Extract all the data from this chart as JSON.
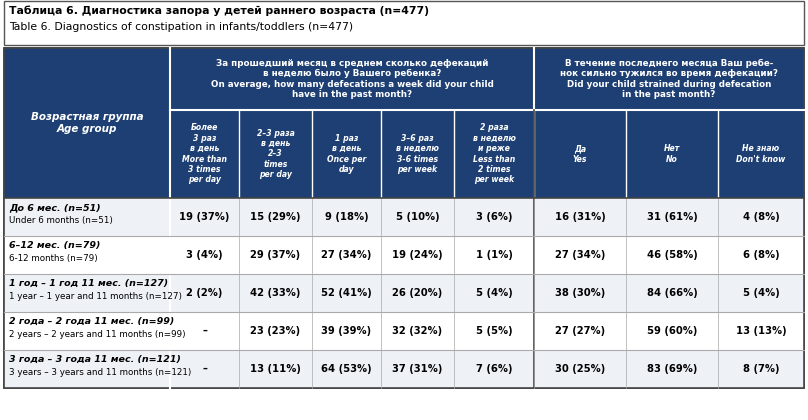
{
  "title_ru": "Таблица 6. Диагностика запора у детей раннего возраста (n=477)",
  "title_en": "Table 6. Diagnostics of constipation in infants/toddlers (n=477)",
  "header_bg": "#1e3f73",
  "header_text": "#ffffff",
  "border_color": "#aaaaaa",
  "age_group_ru": "Возрастная группа",
  "age_group_en": "Age group",
  "col_group1_line1": "За прошедший месяц в среднем сколько дефекаций",
  "col_group1_line2": "в неделю было у Вашего ребенка?",
  "col_group1_line3": "On average, how many defecations a week did your child",
  "col_group1_line4": "have in the past month?",
  "col_group2_line1": "В течение последнего месяца Ваш ребе-",
  "col_group2_line2": "нок сильно тужился во время дефекации?",
  "col_group2_line3": "Did your child strained during defecation",
  "col_group2_line4": "in the past month?",
  "sub_cols_display": [
    "Более\n3 раз\nв день\nMore than\n3 times\nper day",
    "2–3 раза\nв день\n2–3\ntimes\nper day",
    "1 раз\nв день\nOnce per\nday",
    "3–6 раз\nв неделю\n3-6 times\nper week",
    "2 раза\nв неделю\nи реже\nLess than\n2 times\nper week",
    "Да\nYes",
    "Нет\nNo",
    "Не знаю\nDon't know"
  ],
  "rows": [
    {
      "label_ru": "До 6 мес. (n=51)",
      "label_en": "Under 6 months (n=51)",
      "values": [
        "19 (37%)",
        "15 (29%)",
        "9 (18%)",
        "5 (10%)",
        "3 (6%)",
        "16 (31%)",
        "31 (61%)",
        "4 (8%)"
      ]
    },
    {
      "label_ru": "6–12 мес. (n=79)",
      "label_en": "6-12 months (n=79)",
      "values": [
        "3 (4%)",
        "29 (37%)",
        "27 (34%)",
        "19 (24%)",
        "1 (1%)",
        "27 (34%)",
        "46 (58%)",
        "6 (8%)"
      ]
    },
    {
      "label_ru": "1 год – 1 год 11 мес. (n=127)",
      "label_en": "1 year – 1 year and 11 months (n=127)",
      "values": [
        "2 (2%)",
        "42 (33%)",
        "52 (41%)",
        "26 (20%)",
        "5 (4%)",
        "38 (30%)",
        "84 (66%)",
        "5 (4%)"
      ]
    },
    {
      "label_ru": "2 года – 2 года 11 мес. (n=99)",
      "label_en": "2 years – 2 years and 11 months (n=99)",
      "values": [
        "–",
        "23 (23%)",
        "39 (39%)",
        "32 (32%)",
        "5 (5%)",
        "27 (27%)",
        "59 (60%)",
        "13 (13%)"
      ]
    },
    {
      "label_ru": "3 года – 3 года 11 мес. (n=121)",
      "label_en": "3 years – 3 years and 11 months (n=121)",
      "values": [
        "–",
        "13 (11%)",
        "64 (53%)",
        "37 (31%)",
        "7 (6%)",
        "30 (25%)",
        "83 (69%)",
        "8 (7%)"
      ]
    }
  ]
}
